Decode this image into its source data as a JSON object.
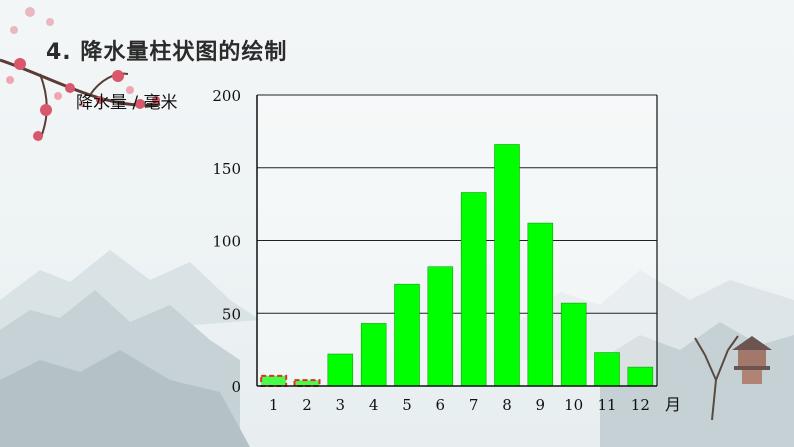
{
  "slide": {
    "title": "4. 降水量柱状图的绘制"
  },
  "chart_data": {
    "type": "bar",
    "categories": [
      "1",
      "2",
      "3",
      "4",
      "5",
      "6",
      "7",
      "8",
      "9",
      "10",
      "11",
      "12"
    ],
    "values": [
      7,
      4,
      22,
      43,
      70,
      82,
      133,
      166,
      112,
      57,
      23,
      13
    ],
    "ylabel": "降水量 / 毫米",
    "xlabel": "月",
    "ylim": [
      0,
      200
    ],
    "yticks": [
      "0",
      "50",
      "100",
      "150",
      "200"
    ],
    "grid": "horizontal",
    "bar_color": "#00ff00",
    "highlight_dashed_months": [
      "1",
      "2"
    ],
    "dash_color": "#e03020"
  }
}
